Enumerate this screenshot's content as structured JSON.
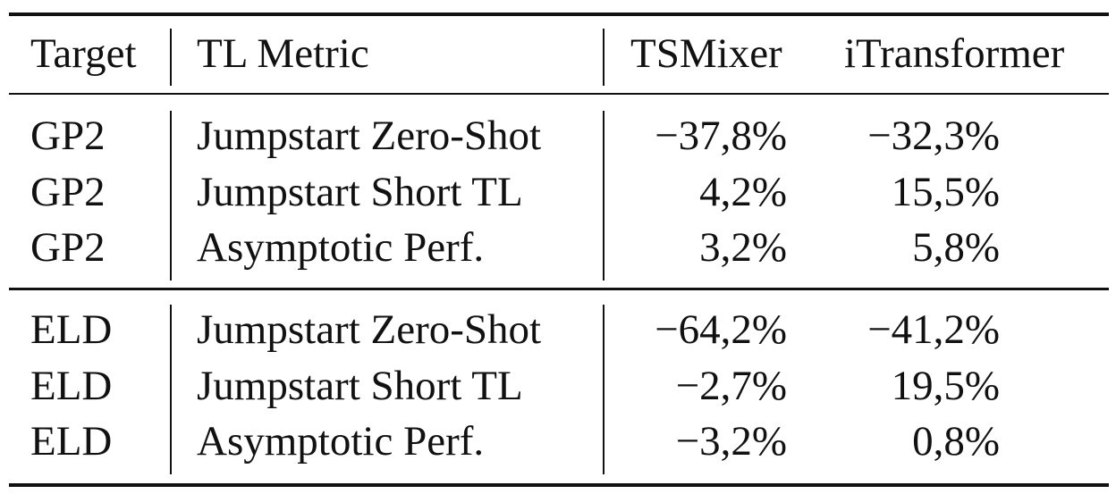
{
  "table": {
    "headers": {
      "target": "Target",
      "metric": "TL Metric",
      "tsmixer": "TSMixer",
      "itransformer": "iTransformer"
    },
    "groups": [
      {
        "rows": [
          {
            "target": "GP2",
            "metric": "Jumpstart Zero-Shot",
            "tsmixer": "−37,8%",
            "itransformer": "−32,3%"
          },
          {
            "target": "GP2",
            "metric": "Jumpstart Short TL",
            "tsmixer": "4,2%",
            "itransformer": "15,5%"
          },
          {
            "target": "GP2",
            "metric": "Asymptotic Perf.",
            "tsmixer": "3,2%",
            "itransformer": "5,8%"
          }
        ]
      },
      {
        "rows": [
          {
            "target": "ELD",
            "metric": "Jumpstart Zero-Shot",
            "tsmixer": "−64,2%",
            "itransformer": "−41,2%"
          },
          {
            "target": "ELD",
            "metric": "Jumpstart Short TL",
            "tsmixer": "−2,7%",
            "itransformer": "19,5%"
          },
          {
            "target": "ELD",
            "metric": "Asymptotic Perf.",
            "tsmixer": "−3,2%",
            "itransformer": "0,8%"
          }
        ]
      }
    ]
  }
}
